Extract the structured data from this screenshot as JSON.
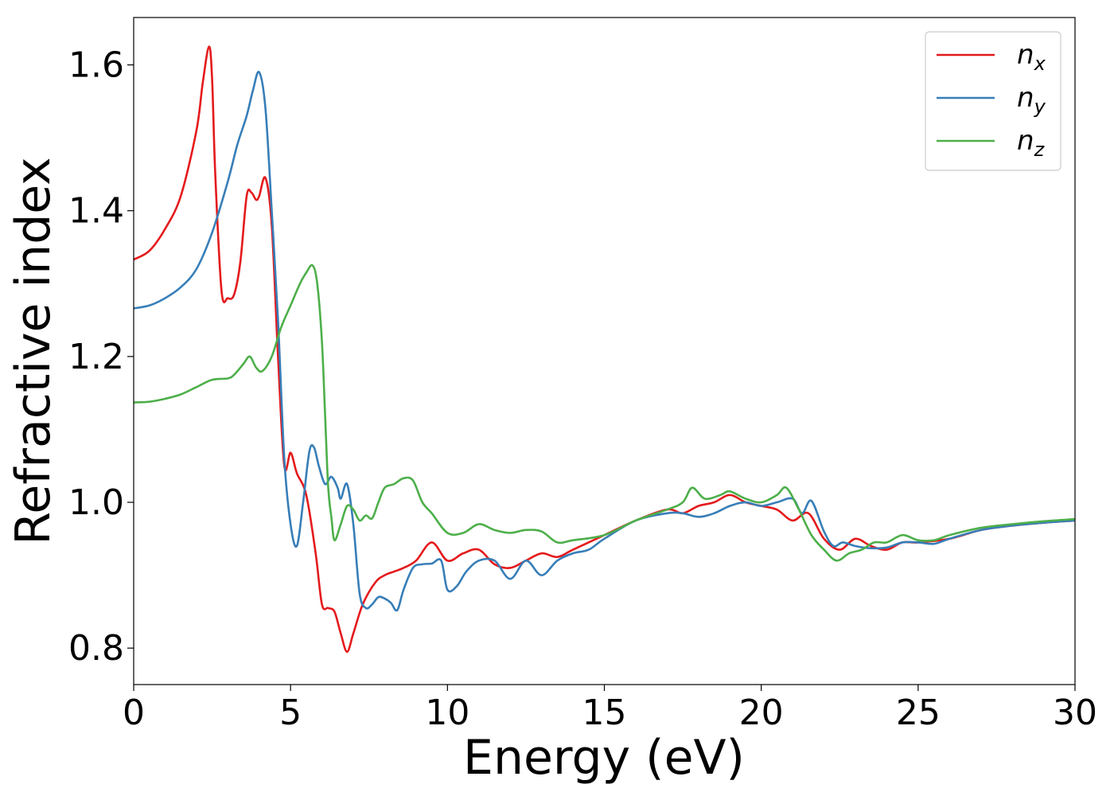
{
  "chart_data": {
    "type": "line",
    "title": "",
    "xlabel": "Energy (eV)",
    "ylabel": "Refractive index",
    "xlim": [
      0,
      30
    ],
    "ylim": [
      0.75,
      1.665
    ],
    "xticks": [
      0,
      5,
      10,
      15,
      20,
      25,
      30
    ],
    "xtick_labels": [
      "0",
      "5",
      "10",
      "15",
      "20",
      "25",
      "30"
    ],
    "yticks": [
      0.8,
      1.0,
      1.2,
      1.4,
      1.6
    ],
    "ytick_labels": [
      "0.8",
      "1.0",
      "1.2",
      "1.4",
      "1.6"
    ],
    "grid": false,
    "legend_position": "top-right",
    "series": [
      {
        "name": "n",
        "subscript": "x",
        "color": "#e41a1c",
        "x": [
          0,
          0.5,
          1.0,
          1.5,
          2.0,
          2.2,
          2.4,
          2.5,
          2.6,
          2.8,
          3.0,
          3.2,
          3.4,
          3.6,
          3.75,
          3.9,
          4.0,
          4.2,
          4.4,
          4.6,
          4.8,
          5.0,
          5.2,
          5.5,
          5.8,
          6.0,
          6.2,
          6.4,
          6.6,
          6.8,
          7.0,
          7.3,
          7.7,
          8.0,
          8.3,
          8.6,
          9.0,
          9.5,
          10.0,
          10.5,
          11.0,
          11.5,
          12.0,
          12.5,
          13.0,
          13.5,
          14.0,
          15.0,
          16.0,
          17.0,
          17.5,
          18.0,
          18.5,
          19.0,
          19.5,
          20.0,
          20.5,
          21.0,
          21.5,
          22.0,
          22.5,
          23.0,
          23.5,
          24.0,
          24.5,
          25.0,
          26.0,
          27.0,
          28.0,
          29.0,
          30.0
        ],
        "y": [
          1.333,
          1.345,
          1.375,
          1.42,
          1.51,
          1.575,
          1.625,
          1.58,
          1.45,
          1.29,
          1.28,
          1.285,
          1.33,
          1.42,
          1.425,
          1.415,
          1.42,
          1.445,
          1.38,
          1.2,
          1.05,
          1.068,
          1.04,
          1.01,
          0.93,
          0.86,
          0.855,
          0.85,
          0.82,
          0.795,
          0.82,
          0.86,
          0.89,
          0.9,
          0.905,
          0.91,
          0.92,
          0.945,
          0.92,
          0.93,
          0.935,
          0.915,
          0.91,
          0.92,
          0.93,
          0.925,
          0.935,
          0.955,
          0.975,
          0.99,
          0.985,
          0.995,
          1.0,
          1.01,
          1.0,
          0.995,
          0.99,
          0.975,
          0.985,
          0.95,
          0.935,
          0.95,
          0.94,
          0.935,
          0.945,
          0.945,
          0.95,
          0.962,
          0.968,
          0.972,
          0.975
        ]
      },
      {
        "name": "n",
        "subscript": "y",
        "color": "#377eb8",
        "x": [
          0,
          0.5,
          1.0,
          1.5,
          2.0,
          2.5,
          3.0,
          3.3,
          3.6,
          3.8,
          4.0,
          4.2,
          4.4,
          4.6,
          4.8,
          5.0,
          5.2,
          5.4,
          5.6,
          5.75,
          5.9,
          6.1,
          6.3,
          6.5,
          6.6,
          6.8,
          7.0,
          7.2,
          7.4,
          7.6,
          7.8,
          8.0,
          8.2,
          8.4,
          8.6,
          8.9,
          9.2,
          9.5,
          9.8,
          10.0,
          10.3,
          10.6,
          11.0,
          11.5,
          12.0,
          12.5,
          13.0,
          13.5,
          14.0,
          14.5,
          15.0,
          16.0,
          17.0,
          17.5,
          18.0,
          18.5,
          19.0,
          19.5,
          20.0,
          20.5,
          21.0,
          21.3,
          21.6,
          22.0,
          22.3,
          22.6,
          23.0,
          23.5,
          24.0,
          24.5,
          25.0,
          25.5,
          26.0,
          27.0,
          28.0,
          29.0,
          30.0
        ],
        "y": [
          1.266,
          1.27,
          1.28,
          1.295,
          1.32,
          1.37,
          1.44,
          1.49,
          1.53,
          1.565,
          1.59,
          1.54,
          1.4,
          1.25,
          1.06,
          0.97,
          0.94,
          1.0,
          1.07,
          1.075,
          1.05,
          1.025,
          1.035,
          1.02,
          1.005,
          1.025,
          0.97,
          0.875,
          0.855,
          0.86,
          0.87,
          0.868,
          0.862,
          0.852,
          0.88,
          0.91,
          0.915,
          0.916,
          0.92,
          0.88,
          0.885,
          0.905,
          0.92,
          0.92,
          0.895,
          0.92,
          0.9,
          0.92,
          0.93,
          0.935,
          0.95,
          0.975,
          0.985,
          0.985,
          0.98,
          0.985,
          0.995,
          1.0,
          0.995,
          1.0,
          1.005,
          0.985,
          1.002,
          0.96,
          0.94,
          0.945,
          0.94,
          0.937,
          0.938,
          0.945,
          0.945,
          0.943,
          0.95,
          0.962,
          0.968,
          0.972,
          0.975
        ]
      },
      {
        "name": "n",
        "subscript": "z",
        "color": "#4daf4a",
        "x": [
          0,
          0.5,
          1.0,
          1.5,
          2.0,
          2.5,
          3.0,
          3.2,
          3.5,
          3.7,
          3.9,
          4.1,
          4.4,
          4.7,
          5.0,
          5.3,
          5.5,
          5.7,
          5.85,
          6.0,
          6.1,
          6.2,
          6.3,
          6.4,
          6.6,
          6.8,
          7.0,
          7.2,
          7.4,
          7.6,
          7.8,
          8.0,
          8.3,
          8.6,
          8.9,
          9.2,
          9.5,
          10.0,
          10.5,
          11.0,
          11.5,
          12.0,
          12.5,
          13.0,
          13.5,
          14.0,
          15.0,
          16.0,
          17.0,
          17.5,
          17.8,
          18.2,
          18.7,
          19.0,
          19.5,
          20.0,
          20.5,
          20.8,
          21.2,
          21.6,
          22.0,
          22.4,
          22.8,
          23.2,
          23.6,
          24.0,
          24.5,
          25.0,
          25.5,
          26.0,
          27.0,
          28.0,
          29.0,
          30.0
        ],
        "y": [
          1.137,
          1.138,
          1.142,
          1.148,
          1.158,
          1.168,
          1.17,
          1.175,
          1.19,
          1.2,
          1.185,
          1.18,
          1.2,
          1.24,
          1.27,
          1.3,
          1.315,
          1.325,
          1.3,
          1.22,
          1.12,
          1.02,
          0.98,
          0.948,
          0.97,
          0.995,
          0.99,
          0.975,
          0.982,
          0.978,
          1.0,
          1.02,
          1.025,
          1.033,
          1.03,
          1.0,
          0.985,
          0.958,
          0.958,
          0.97,
          0.962,
          0.958,
          0.962,
          0.96,
          0.945,
          0.948,
          0.955,
          0.975,
          0.99,
          1.0,
          1.02,
          1.005,
          1.01,
          1.015,
          1.005,
          1.0,
          1.01,
          1.02,
          0.99,
          0.955,
          0.935,
          0.92,
          0.93,
          0.935,
          0.945,
          0.945,
          0.955,
          0.948,
          0.948,
          0.955,
          0.965,
          0.97,
          0.974,
          0.977
        ]
      }
    ]
  }
}
